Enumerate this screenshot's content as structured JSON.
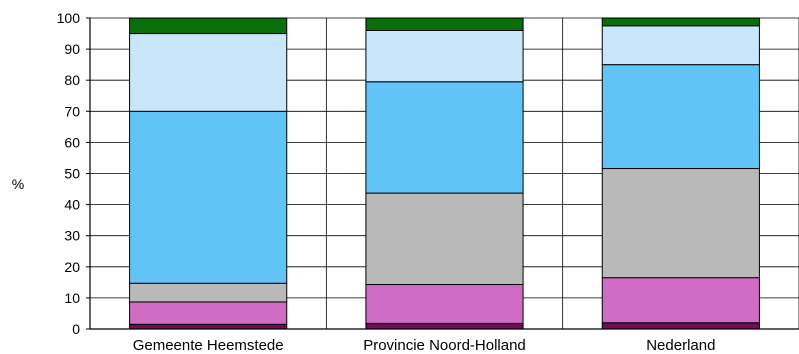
{
  "chart_data": {
    "type": "bar",
    "stacked": true,
    "orientation": "vertical",
    "ylabel": "%",
    "xlabel": "",
    "title": "",
    "ylim": [
      0,
      100
    ],
    "yticks": [
      "0",
      "10",
      "20",
      "30",
      "40",
      "50",
      "60",
      "70",
      "80",
      "90",
      "100"
    ],
    "grid": true,
    "categories": [
      "Gemeente Heemstede",
      "Provincie Noord-Holland",
      "Nederland"
    ],
    "series": [
      {
        "color": "#6b0f57",
        "values": [
          1.5,
          1.8,
          2.0
        ]
      },
      {
        "color": "#d16cc5",
        "values": [
          7.2,
          12.5,
          14.5
        ]
      },
      {
        "color": "#b9b9b9",
        "values": [
          6.0,
          29.4,
          35.1
        ]
      },
      {
        "color": "#62c3f7",
        "values": [
          55.3,
          35.8,
          33.4
        ]
      },
      {
        "color": "#c9e6fb",
        "values": [
          25.0,
          16.5,
          12.5
        ]
      },
      {
        "color": "#0a6e0a",
        "values": [
          5.0,
          4.0,
          2.5
        ]
      }
    ]
  }
}
